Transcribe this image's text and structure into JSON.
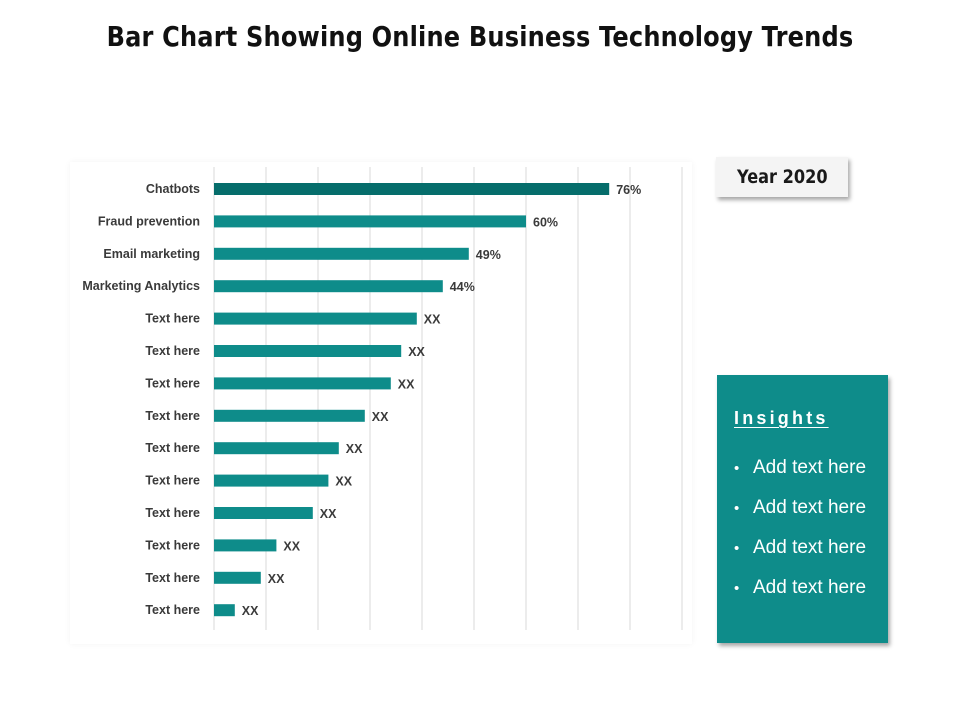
{
  "title": "Bar Chart Showing Online Business Technology Trends",
  "year_label": "Year 2020",
  "colors": {
    "bar": "#0e8c8a",
    "bar_highlight": "#066d6b",
    "grid": "#d9d9d9"
  },
  "insights": {
    "title": "Insights",
    "bullets": [
      "Add text here",
      "Add text here",
      "Add text here",
      "Add text here"
    ]
  },
  "chart_data": {
    "type": "bar",
    "orientation": "horizontal",
    "title": "Bar Chart Showing Online Business Technology Trends",
    "xlabel": "",
    "ylabel": "",
    "xlim": [
      0,
      90
    ],
    "grid": true,
    "categories": [
      "Chatbots",
      "Fraud prevention",
      "Email marketing",
      "Marketing Analytics",
      "Text here",
      "Text here",
      "Text here",
      "Text here",
      "Text here",
      "Text here",
      "Text here",
      "Text here",
      "Text here",
      "Text here"
    ],
    "values": [
      76,
      60,
      49,
      44,
      39,
      36,
      34,
      29,
      24,
      22,
      19,
      12,
      9,
      4
    ],
    "labels": [
      "76%",
      "60%",
      "49%",
      "44%",
      "XX",
      "XX",
      "XX",
      "XX",
      "XX",
      "XX",
      "XX",
      "XX",
      "XX",
      "XX"
    ],
    "highlight_index": 0
  }
}
